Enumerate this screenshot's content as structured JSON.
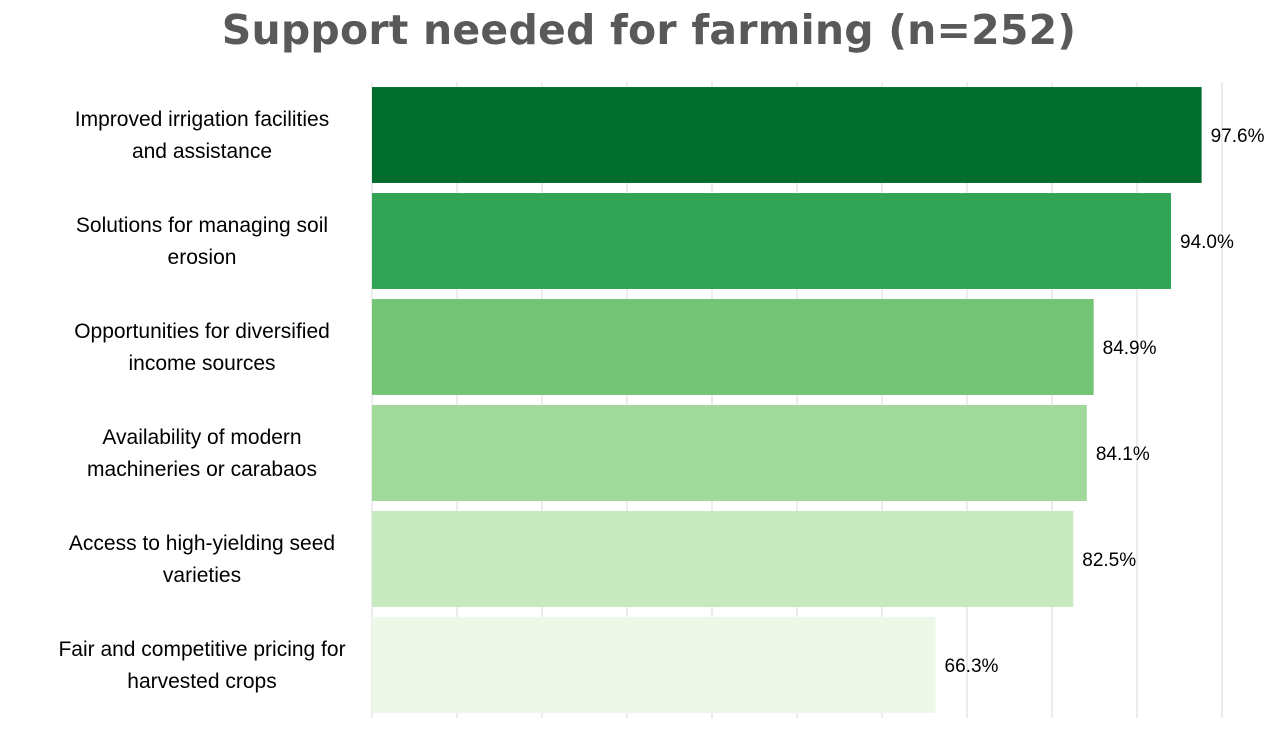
{
  "chart_data": {
    "type": "bar",
    "orientation": "horizontal",
    "title": "Support needed for farming (n=252)",
    "xlabel": "",
    "ylabel": "",
    "xlim": [
      0,
      100
    ],
    "grid": "vertical",
    "gridline_color": "#d9d9d9",
    "categories": [
      [
        "Improved irrigation facilities",
        "and assistance"
      ],
      [
        "Solutions for managing soil",
        "erosion"
      ],
      [
        "Opportunities for diversified",
        "income sources"
      ],
      [
        "Availability of modern",
        "machineries or carabaos"
      ],
      [
        "Access to high-yielding seed",
        "varieties"
      ],
      [
        "Fair and competitive pricing for",
        "harvested crops"
      ]
    ],
    "values": [
      97.6,
      94.0,
      84.9,
      84.1,
      82.5,
      66.3
    ],
    "value_labels": [
      "97.6%",
      "94.0%",
      "84.9%",
      "84.1%",
      "82.5%",
      "66.3%"
    ],
    "colors": [
      "#006d2c",
      "#31a354",
      "#74c476",
      "#a1d99b",
      "#c7e9c0",
      "#edf8e9"
    ]
  }
}
